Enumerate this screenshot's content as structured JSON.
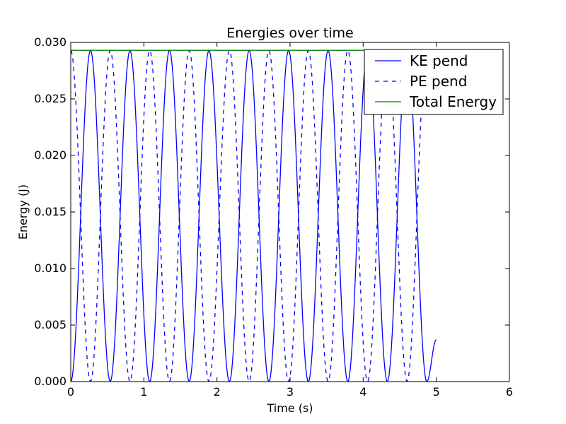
{
  "chart_data": {
    "type": "line",
    "title": "Energies over time",
    "xlabel": "Time (s)",
    "ylabel": "Energy (J)",
    "xlim": [
      0,
      6
    ],
    "ylim": [
      0,
      0.03
    ],
    "x_ticks": [
      0,
      1,
      2,
      3,
      4,
      5,
      6
    ],
    "x_tick_labels": [
      "0",
      "1",
      "2",
      "3",
      "4",
      "5",
      "6"
    ],
    "y_ticks": [
      0,
      0.005,
      0.01,
      0.015,
      0.02,
      0.025,
      0.03
    ],
    "y_tick_labels": [
      "0.000",
      "0.005",
      "0.010",
      "0.015",
      "0.020",
      "0.025",
      "0.030"
    ],
    "grid": false,
    "legend_position": "top-right",
    "series": [
      {
        "name": "KE pend",
        "style": "solid",
        "color": "#0000ff",
        "peak_times": [
          0.27,
          0.81,
          1.35,
          1.89,
          2.44,
          2.98,
          3.52,
          4.06,
          4.6
        ],
        "zero_times": [
          0.0,
          0.54,
          1.08,
          1.62,
          2.17,
          2.71,
          3.25,
          3.79,
          4.33,
          4.87
        ],
        "peak_value": 0.0293,
        "end_point": [
          5.0,
          0.0037
        ]
      },
      {
        "name": "PE pend",
        "style": "dashed",
        "color": "#0000ff",
        "peak_times": [
          0.0,
          0.54,
          1.08,
          1.62,
          2.17,
          2.71,
          3.25,
          3.79,
          4.33,
          4.87
        ],
        "zero_times": [
          0.27,
          0.81,
          1.35,
          1.89,
          2.44,
          2.98,
          3.52,
          4.06,
          4.6
        ],
        "peak_value": 0.0293,
        "end_point": [
          5.0,
          0.0256
        ]
      },
      {
        "name": "Total Energy",
        "style": "solid",
        "color": "#008000",
        "x": [
          0,
          5.0
        ],
        "y": [
          0.0293,
          0.0293
        ]
      }
    ]
  }
}
